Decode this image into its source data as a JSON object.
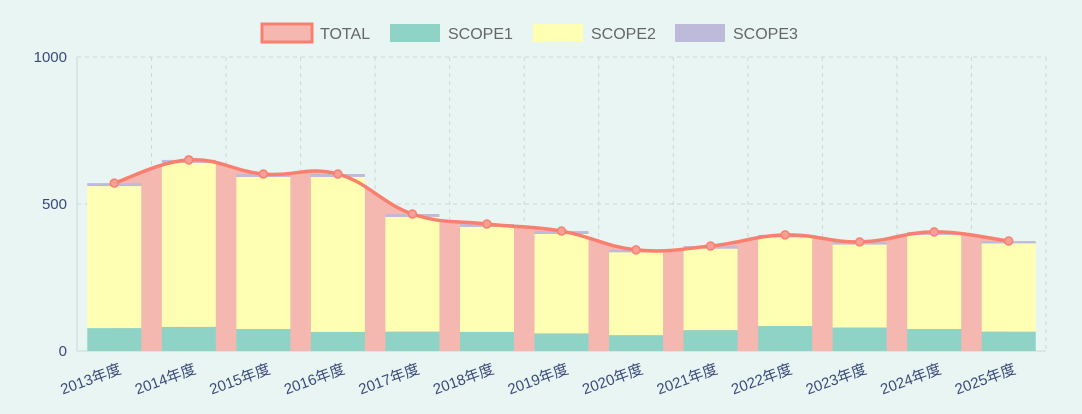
{
  "chart_data": {
    "type": "bar",
    "title": "",
    "categories": [
      "2013年度",
      "2014年度",
      "2015年度",
      "2016年度",
      "2017年度",
      "2018年度",
      "2019年度",
      "2020年度",
      "2021年度",
      "2022年度",
      "2023年度",
      "2024年度",
      "2025年度"
    ],
    "series": [
      {
        "name": "TOTAL",
        "type": "line",
        "values": [
          571,
          650,
          602,
          602,
          466,
          432,
          408,
          344,
          357,
          395,
          371,
          405,
          374
        ]
      },
      {
        "name": "SCOPE1",
        "type": "bar",
        "values": [
          78,
          82,
          75,
          65,
          66,
          65,
          60,
          54,
          71,
          85,
          80,
          75,
          66
        ]
      },
      {
        "name": "SCOPE2",
        "type": "bar",
        "values": [
          483,
          558,
          517,
          527,
          390,
          357,
          338,
          282,
          277,
          301,
          282,
          320,
          300
        ]
      },
      {
        "name": "SCOPE3",
        "type": "bar",
        "values": [
          10,
          10,
          10,
          10,
          10,
          10,
          10,
          8,
          9,
          9,
          9,
          10,
          8
        ]
      }
    ],
    "ylim": [
      0,
      1000
    ],
    "yticks": [
      0,
      500,
      1000
    ],
    "grid": true,
    "legend": "top-center",
    "colors": {
      "TOTAL_line": "#fa7f6f",
      "TOTAL_fill": "#f4b8b0",
      "SCOPE1": "#8fd3c7",
      "SCOPE2": "#ffffb4",
      "SCOPE3": "#bebada",
      "axis_text": "#3b4a7a"
    }
  }
}
